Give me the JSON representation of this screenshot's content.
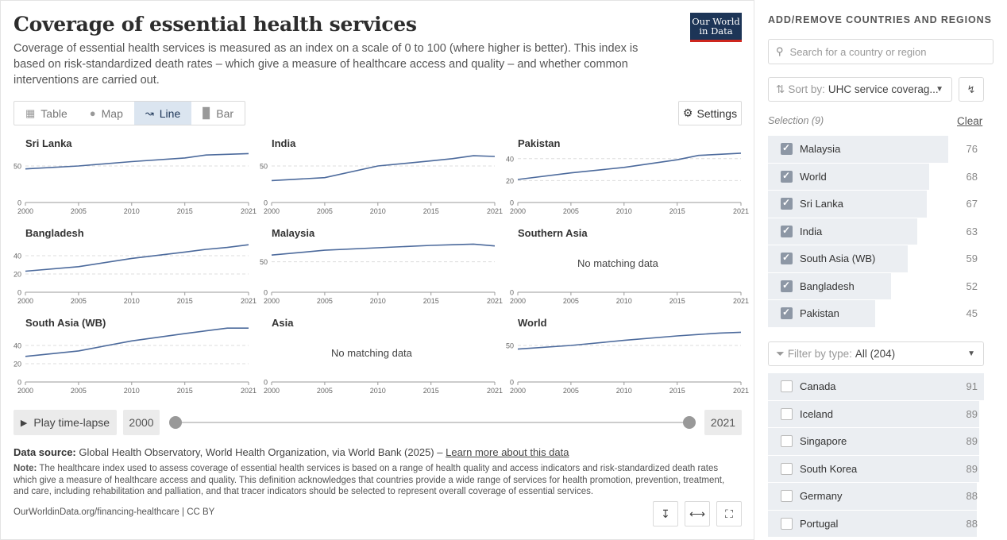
{
  "header": {
    "title": "Coverage of essential health services",
    "subtitle": "Coverage of essential health services is measured as an index on a scale of 0 to 100 (where higher is better). This index is based on risk-standardized death rates – which give a measure of healthcare access and quality – and whether common interventions are carried out.",
    "logo": "Our World in Data"
  },
  "tabs": [
    {
      "label": "Table",
      "icon": "table-icon",
      "active": false
    },
    {
      "label": "Map",
      "icon": "globe-icon",
      "active": false
    },
    {
      "label": "Line",
      "icon": "line-chart-icon",
      "active": true
    },
    {
      "label": "Bar",
      "icon": "bar-chart-icon",
      "active": false
    }
  ],
  "settings_label": "Settings",
  "no_data_label": "No matching data",
  "chart_data": {
    "type": "line",
    "layout": "small-multiples",
    "x_ticks": [
      2000,
      2005,
      2010,
      2015,
      2021
    ],
    "xlim": [
      2000,
      2021
    ],
    "grid": "dashed horizontal",
    "line_color": "#4c6a9c",
    "panels": [
      {
        "title": "Sri Lanka",
        "yticks": [
          0,
          50
        ],
        "ylim": [
          0,
          75
        ],
        "x": [
          2000,
          2005,
          2010,
          2015,
          2017,
          2019,
          2021
        ],
        "y": [
          46,
          50,
          56,
          61,
          65,
          66,
          67
        ]
      },
      {
        "title": "India",
        "yticks": [
          0,
          50
        ],
        "ylim": [
          0,
          75
        ],
        "x": [
          2000,
          2005,
          2010,
          2015,
          2017,
          2019,
          2021
        ],
        "y": [
          30,
          34,
          50,
          57,
          60,
          64,
          63
        ]
      },
      {
        "title": "Pakistan",
        "yticks": [
          0,
          20,
          40
        ],
        "ylim": [
          0,
          50
        ],
        "x": [
          2000,
          2005,
          2010,
          2015,
          2017,
          2019,
          2021
        ],
        "y": [
          21,
          27,
          32,
          39,
          43,
          44,
          45
        ]
      },
      {
        "title": "Bangladesh",
        "yticks": [
          0,
          20,
          40
        ],
        "ylim": [
          0,
          60
        ],
        "x": [
          2000,
          2005,
          2010,
          2015,
          2017,
          2019,
          2021
        ],
        "y": [
          23,
          28,
          37,
          44,
          47,
          49,
          52
        ]
      },
      {
        "title": "Malaysia",
        "yticks": [
          0,
          50
        ],
        "ylim": [
          0,
          90
        ],
        "x": [
          2000,
          2005,
          2010,
          2015,
          2017,
          2019,
          2021
        ],
        "y": [
          61,
          69,
          73,
          77,
          78,
          79,
          76
        ]
      },
      {
        "title": "Southern Asia",
        "yticks": [
          0
        ],
        "ylim": [
          0,
          60
        ],
        "x": [],
        "y": [],
        "no_data": true
      },
      {
        "title": "South Asia (WB)",
        "yticks": [
          0,
          20,
          40
        ],
        "ylim": [
          0,
          60
        ],
        "x": [
          2000,
          2005,
          2010,
          2015,
          2017,
          2019,
          2021
        ],
        "y": [
          28,
          34,
          45,
          53,
          56,
          59,
          59
        ]
      },
      {
        "title": "Asia",
        "yticks": [
          0
        ],
        "ylim": [
          0,
          60
        ],
        "x": [],
        "y": [],
        "no_data": true
      },
      {
        "title": "World",
        "yticks": [
          0,
          50
        ],
        "ylim": [
          0,
          75
        ],
        "x": [
          2000,
          2005,
          2010,
          2015,
          2017,
          2019,
          2021
        ],
        "y": [
          45,
          50,
          57,
          63,
          65,
          67,
          68
        ]
      }
    ]
  },
  "timeline": {
    "play_label": "Play time-lapse",
    "start_year": "2000",
    "end_year": "2021"
  },
  "footer": {
    "source_label": "Data source:",
    "source_text": "Global Health Observatory, World Health Organization, via World Bank (2025) –",
    "source_link": "Learn more about this data",
    "note_label": "Note:",
    "note_text": "The healthcare index used to assess coverage of essential health services is based on a range of health quality and access indicators and risk-standardized death rates which give a measure of healthcare access and quality. This definition acknowledges that countries provide a wide range of services for health promotion, prevention, treatment, and care, including rehabilitation and palliation, and that tracer indicators should be selected to represent overall coverage of essential services.",
    "url": "OurWorldinData.org/financing-healthcare | CC BY"
  },
  "sidebar": {
    "heading": "ADD/REMOVE COUNTRIES AND REGIONS",
    "search_placeholder": "Search for a country or region",
    "sort_label": "Sort by:",
    "sort_value": "UHC service coverag...",
    "selection_label": "Selection (9)",
    "clear_label": "Clear",
    "selected": [
      {
        "name": "Malaysia",
        "value": 76
      },
      {
        "name": "World",
        "value": 68
      },
      {
        "name": "Sri Lanka",
        "value": 67
      },
      {
        "name": "India",
        "value": 63
      },
      {
        "name": "South Asia (WB)",
        "value": 59
      },
      {
        "name": "Bangladesh",
        "value": 52
      },
      {
        "name": "Pakistan",
        "value": 45
      }
    ],
    "filter_label": "Filter by type:",
    "filter_value": "All (204)",
    "others": [
      {
        "name": "Canada",
        "value": 91
      },
      {
        "name": "Iceland",
        "value": 89
      },
      {
        "name": "Singapore",
        "value": 89
      },
      {
        "name": "South Korea",
        "value": 89
      },
      {
        "name": "Germany",
        "value": 88
      },
      {
        "name": "Portugal",
        "value": 88
      }
    ]
  }
}
